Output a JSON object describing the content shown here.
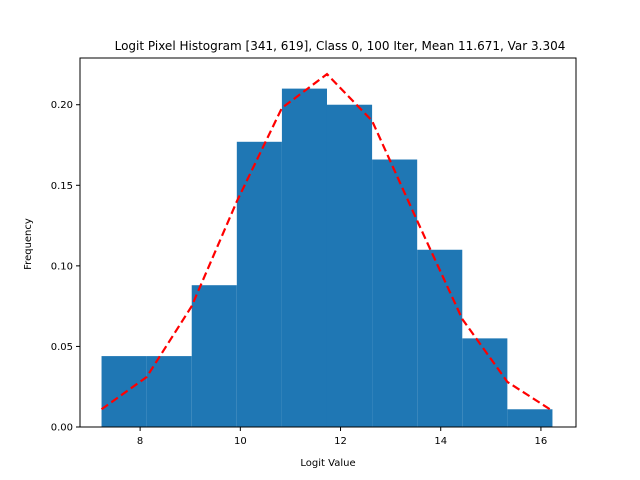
{
  "chart_data": {
    "type": "bar",
    "title": "Logit Pixel Histogram [341, 619], Class 0, 100 Iter, Mean 11.671, Var 3.304",
    "xlabel": "Logit Value",
    "ylabel": "Frequency",
    "xlim": [
      6.8,
      16.7
    ],
    "ylim": [
      0,
      0.229
    ],
    "xticks": [
      8,
      10,
      12,
      14,
      16
    ],
    "yticks": [
      0.0,
      0.05,
      0.1,
      0.15,
      0.2
    ],
    "xtick_labels": [
      "8",
      "10",
      "12",
      "14",
      "16"
    ],
    "ytick_labels": [
      "0.00",
      "0.05",
      "0.10",
      "0.15",
      "0.20"
    ],
    "bins": [
      {
        "x0": 7.23,
        "x1": 8.13,
        "value": 0.044
      },
      {
        "x0": 8.13,
        "x1": 9.03,
        "value": 0.044
      },
      {
        "x0": 9.03,
        "x1": 9.93,
        "value": 0.088
      },
      {
        "x0": 9.93,
        "x1": 10.83,
        "value": 0.177
      },
      {
        "x0": 10.83,
        "x1": 11.73,
        "value": 0.21
      },
      {
        "x0": 11.73,
        "x1": 12.63,
        "value": 0.2
      },
      {
        "x0": 12.63,
        "x1": 13.53,
        "value": 0.166
      },
      {
        "x0": 13.53,
        "x1": 14.43,
        "value": 0.11
      },
      {
        "x0": 14.43,
        "x1": 15.33,
        "value": 0.055
      },
      {
        "x0": 15.33,
        "x1": 16.23,
        "value": 0.011
      }
    ],
    "bar_color": "#1f77b4",
    "curve": {
      "style": "dashed",
      "color": "#ff0000",
      "x": [
        7.23,
        8.13,
        9.03,
        9.93,
        10.83,
        11.73,
        12.63,
        13.53,
        14.43,
        15.33,
        16.23
      ],
      "y": [
        0.011,
        0.031,
        0.075,
        0.14,
        0.198,
        0.219,
        0.19,
        0.128,
        0.067,
        0.028,
        0.01
      ]
    },
    "grid": false,
    "legend": "none"
  }
}
